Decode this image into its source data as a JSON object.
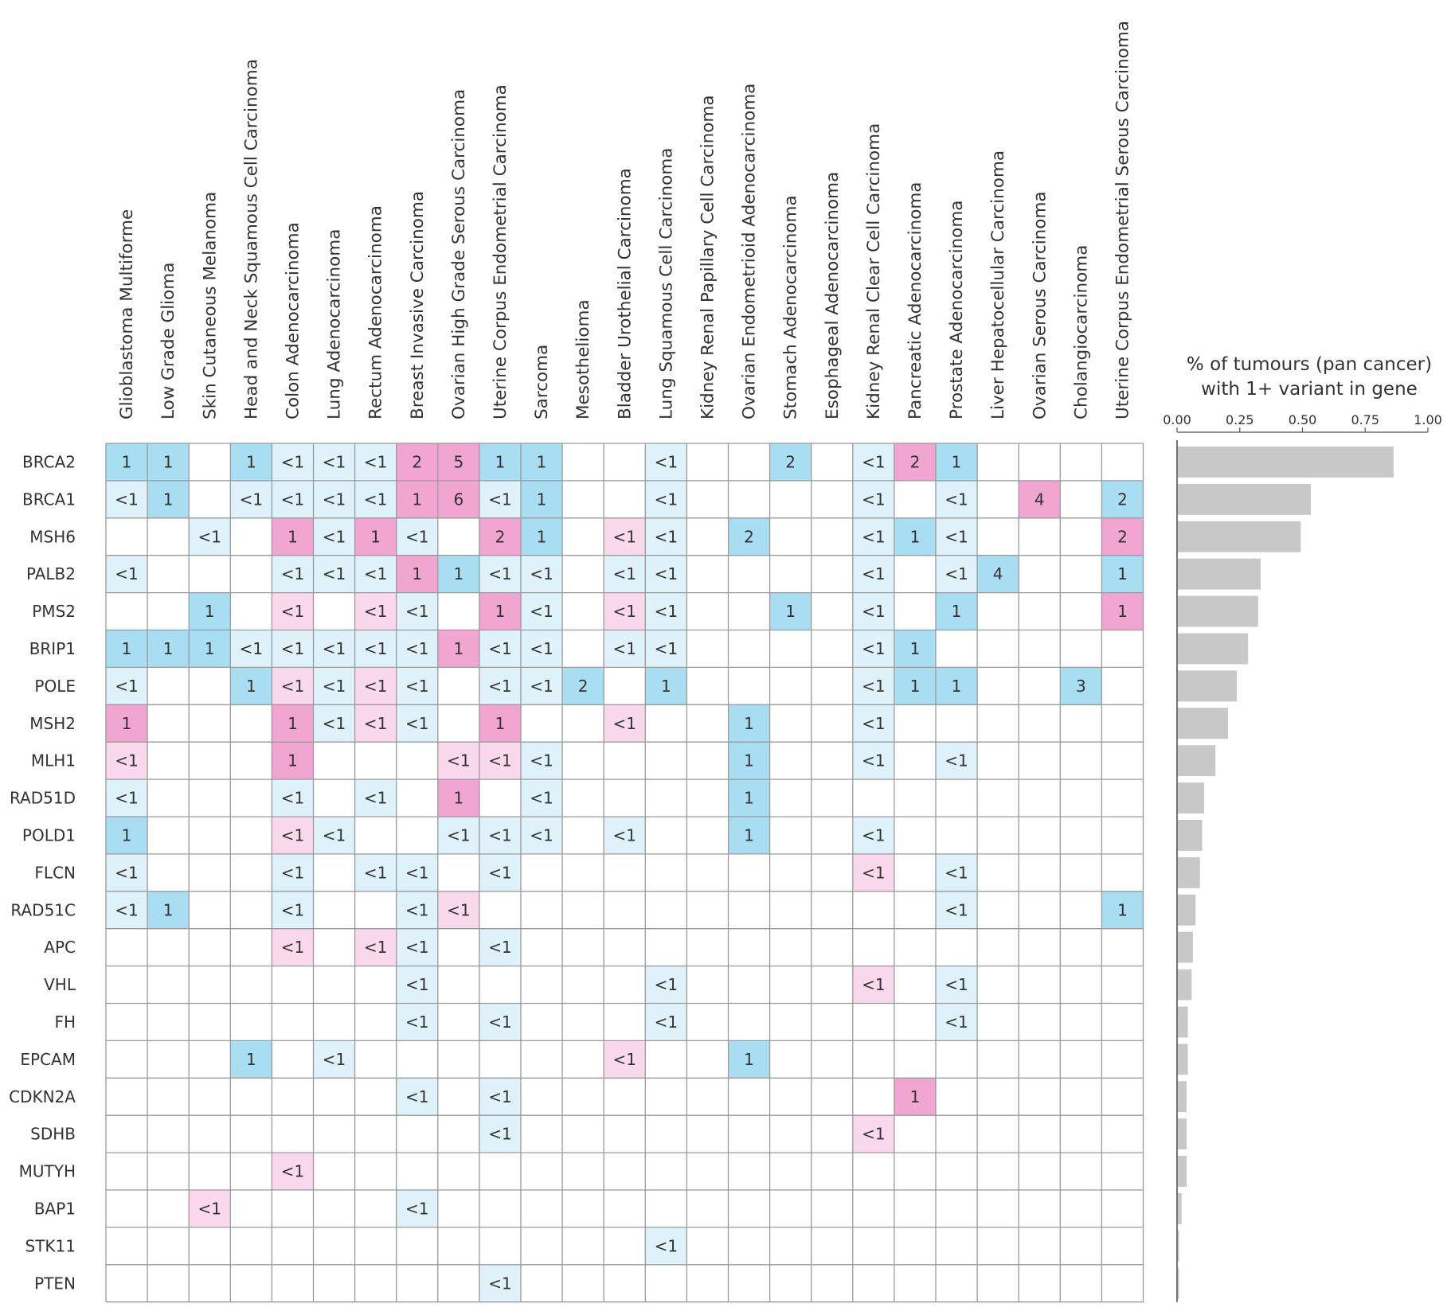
{
  "chart_data": [
    {
      "type": "heatmap",
      "title": "",
      "columns": [
        "Glioblastoma Multiforme",
        "Low Grade Glioma",
        "Skin Cutaneous Melanoma",
        "Head and Neck Squamous Cell Carcinoma",
        "Colon Adenocarcinoma",
        "Lung Adenocarcinoma",
        "Rectum Adenocarcinoma",
        "Breast Invasive Carcinoma",
        "Ovarian High Grade Serous Carcinoma",
        "Uterine Corpus Endometrial Carcinoma",
        "Sarcoma",
        "Mesothelioma",
        "Bladder Urothelial Carcinoma",
        "Lung Squamous Cell Carcinoma",
        "Kidney Renal Papillary Cell Carcinoma",
        "Ovarian Endometrioid Adenocarcinoma",
        "Stomach Adenocarcinoma",
        "Esophageal Adenocarcinoma",
        "Kidney Renal Clear Cell Carcinoma",
        "Pancreatic Adenocarcinoma",
        "Prostate Adenocarcinoma",
        "Liver Hepatocellular Carcinoma",
        "Ovarian Serous Carcinoma",
        "Cholangiocarcinoma",
        "Uterine Corpus Endometrial Serous Carcinoma"
      ],
      "rows": [
        "BRCA2",
        "BRCA1",
        "MSH6",
        "PALB2",
        "PMS2",
        "BRIP1",
        "POLE",
        "MSH2",
        "MLH1",
        "RAD51D",
        "POLD1",
        "FLCN",
        "RAD51C",
        "APC",
        "VHL",
        "FH",
        "EPCAM",
        "CDKN2A",
        "SDHB",
        "MUTYH",
        "BAP1",
        "STK11",
        "PTEN"
      ],
      "cell_classes": {
        "B": "blue (strong)",
        "b": "blue (light)",
        "P": "pink (strong)",
        "p": "pink (light)"
      },
      "colors": {
        "B": "#a9ddf1",
        "b": "#dff1f9",
        "P": "#f1a5d1",
        "p": "#fad9ec",
        "grid": "#9a9a9a",
        "bar": "#c8c8c8"
      },
      "cells": [
        [
          "1|B",
          "1|B",
          "",
          "1|B",
          "<1|b",
          "<1|b",
          "<1|b",
          "2|P",
          "5|P",
          "1|B",
          "1|B",
          "",
          "",
          "<1|b",
          "",
          "",
          "2|B",
          "",
          "<1|b",
          "2|P",
          "1|B",
          "",
          "",
          "",
          ""
        ],
        [
          "<1|b",
          "1|B",
          "",
          "<1|b",
          "<1|b",
          "<1|b",
          "<1|b",
          "1|P",
          "6|P",
          "<1|b",
          "1|B",
          "",
          "",
          "<1|b",
          "",
          "",
          "",
          "",
          "<1|b",
          "",
          "<1|b",
          "",
          "4|P",
          "",
          "2|B"
        ],
        [
          "",
          "",
          "<1|b",
          "",
          "1|P",
          "<1|b",
          "1|P",
          "<1|b",
          "",
          "2|P",
          "1|B",
          "",
          "<1|p",
          "<1|b",
          "",
          "2|B",
          "",
          "",
          "<1|b",
          "1|B",
          "<1|b",
          "",
          "",
          "",
          "2|P"
        ],
        [
          "<1|b",
          "",
          "",
          "",
          "<1|b",
          "<1|b",
          "<1|b",
          "1|P",
          "1|B",
          "<1|b",
          "<1|b",
          "",
          "<1|b",
          "<1|b",
          "",
          "",
          "",
          "",
          "<1|b",
          "",
          "<1|b",
          "4|B",
          "",
          "",
          "1|B"
        ],
        [
          "",
          "",
          "1|B",
          "",
          "<1|p",
          "",
          "<1|p",
          "<1|b",
          "",
          "1|P",
          "<1|b",
          "",
          "<1|p",
          "<1|b",
          "",
          "",
          "1|B",
          "",
          "<1|b",
          "",
          "1|B",
          "",
          "",
          "",
          "1|P"
        ],
        [
          "1|B",
          "1|B",
          "1|B",
          "<1|b",
          "<1|b",
          "<1|b",
          "<1|b",
          "<1|b",
          "1|P",
          "<1|b",
          "<1|b",
          "",
          "<1|b",
          "<1|b",
          "",
          "",
          "",
          "",
          "<1|b",
          "1|B",
          "",
          "",
          "",
          "",
          ""
        ],
        [
          "<1|b",
          "",
          "",
          "1|B",
          "<1|p",
          "<1|b",
          "<1|p",
          "<1|b",
          "",
          "<1|b",
          "<1|b",
          "2|B",
          "",
          "1|B",
          "",
          "",
          "",
          "",
          "<1|b",
          "1|B",
          "1|B",
          "",
          "",
          "3|B",
          ""
        ],
        [
          "1|P",
          "",
          "",
          "",
          "1|P",
          "<1|b",
          "<1|p",
          "<1|b",
          "",
          "1|P",
          "",
          "",
          "<1|p",
          "",
          "",
          "1|B",
          "",
          "",
          "<1|b",
          "",
          "",
          "",
          "",
          "",
          ""
        ],
        [
          "<1|p",
          "",
          "",
          "",
          "1|P",
          "",
          "",
          "",
          "<1|p",
          "<1|p",
          "<1|b",
          "",
          "",
          "",
          "",
          "1|B",
          "",
          "",
          "<1|b",
          "",
          "<1|b",
          "",
          "",
          "",
          ""
        ],
        [
          "<1|b",
          "",
          "",
          "",
          "<1|b",
          "",
          "<1|b",
          "",
          "1|P",
          "",
          "<1|b",
          "",
          "",
          "",
          "",
          "1|B",
          "",
          "",
          "",
          "",
          "",
          "",
          "",
          "",
          ""
        ],
        [
          "1|B",
          "",
          "",
          "",
          "<1|p",
          "<1|b",
          "",
          "",
          "<1|b",
          "<1|b",
          "<1|b",
          "",
          "<1|b",
          "",
          "",
          "1|B",
          "",
          "",
          "<1|b",
          "",
          "",
          "",
          "",
          "",
          ""
        ],
        [
          "<1|b",
          "",
          "",
          "",
          "<1|b",
          "",
          "<1|b",
          "<1|b",
          "",
          "<1|b",
          "",
          "",
          "",
          "",
          "",
          "",
          "",
          "",
          "<1|p",
          "",
          "<1|b",
          "",
          "",
          "",
          ""
        ],
        [
          "<1|b",
          "1|B",
          "",
          "",
          "<1|b",
          "",
          "",
          "<1|b",
          "<1|p",
          "",
          "",
          "",
          "",
          "",
          "",
          "",
          "",
          "",
          "",
          "",
          "<1|b",
          "",
          "",
          "",
          "1|B"
        ],
        [
          "",
          "",
          "",
          "",
          "<1|p",
          "",
          "<1|p",
          "<1|b",
          "",
          "<1|b",
          "",
          "",
          "",
          "",
          "",
          "",
          "",
          "",
          "",
          "",
          "",
          "",
          "",
          "",
          ""
        ],
        [
          "",
          "",
          "",
          "",
          "",
          "",
          "",
          "<1|b",
          "",
          "",
          "",
          "",
          "",
          "<1|b",
          "",
          "",
          "",
          "",
          "<1|p",
          "",
          "<1|b",
          "",
          "",
          "",
          ""
        ],
        [
          "",
          "",
          "",
          "",
          "",
          "",
          "",
          "<1|b",
          "",
          "<1|b",
          "",
          "",
          "",
          "<1|b",
          "",
          "",
          "",
          "",
          "",
          "",
          "<1|b",
          "",
          "",
          "",
          ""
        ],
        [
          "",
          "",
          "",
          "1|B",
          "",
          "<1|b",
          "",
          "",
          "",
          "",
          "",
          "",
          "<1|p",
          "",
          "",
          "1|B",
          "",
          "",
          "",
          "",
          "",
          "",
          "",
          "",
          ""
        ],
        [
          "",
          "",
          "",
          "",
          "",
          "",
          "",
          "<1|b",
          "",
          "<1|b",
          "",
          "",
          "",
          "",
          "",
          "",
          "",
          "",
          "",
          "1|P",
          "",
          "",
          "",
          "",
          ""
        ],
        [
          "",
          "",
          "",
          "",
          "",
          "",
          "",
          "",
          "",
          "<1|b",
          "",
          "",
          "",
          "",
          "",
          "",
          "",
          "",
          "<1|p",
          "",
          "",
          "",
          "",
          "",
          ""
        ],
        [
          "",
          "",
          "",
          "",
          "<1|p",
          "",
          "",
          "",
          "",
          "",
          "",
          "",
          "",
          "",
          "",
          "",
          "",
          "",
          "",
          "",
          "",
          "",
          "",
          "",
          ""
        ],
        [
          "",
          "",
          "<1|p",
          "",
          "",
          "",
          "",
          "<1|b",
          "",
          "",
          "",
          "",
          "",
          "",
          "",
          "",
          "",
          "",
          "",
          "",
          "",
          "",
          "",
          "",
          ""
        ],
        [
          "",
          "",
          "",
          "",
          "",
          "",
          "",
          "",
          "",
          "",
          "",
          "",
          "",
          "<1|b",
          "",
          "",
          "",
          "",
          "",
          "",
          "",
          "",
          "",
          "",
          ""
        ],
        [
          "",
          "",
          "",
          "",
          "",
          "",
          "",
          "",
          "",
          "<1|b",
          "",
          "",
          "",
          "",
          "",
          "",
          "",
          "",
          "",
          "",
          "",
          "",
          "",
          "",
          ""
        ]
      ]
    },
    {
      "type": "bar",
      "orientation": "horizontal",
      "title": "% of tumours (pan cancer)",
      "title_line2": "with 1+ variant in gene",
      "categories": [
        "BRCA2",
        "BRCA1",
        "MSH6",
        "PALB2",
        "PMS2",
        "BRIP1",
        "POLE",
        "MSH2",
        "MLH1",
        "RAD51D",
        "POLD1",
        "FLCN",
        "RAD51C",
        "APC",
        "VHL",
        "FH",
        "EPCAM",
        "CDKN2A",
        "SDHB",
        "MUTYH",
        "BAP1",
        "STK11",
        "PTEN"
      ],
      "values": [
        0.86,
        0.53,
        0.49,
        0.33,
        0.32,
        0.28,
        0.235,
        0.2,
        0.15,
        0.105,
        0.097,
        0.088,
        0.07,
        0.06,
        0.055,
        0.04,
        0.04,
        0.035,
        0.035,
        0.035,
        0.015,
        0.005,
        0.005
      ],
      "xlim": [
        0,
        1
      ],
      "xticks": [
        "0.00",
        "0.25",
        "0.50",
        "0.75",
        "1.00"
      ]
    }
  ]
}
